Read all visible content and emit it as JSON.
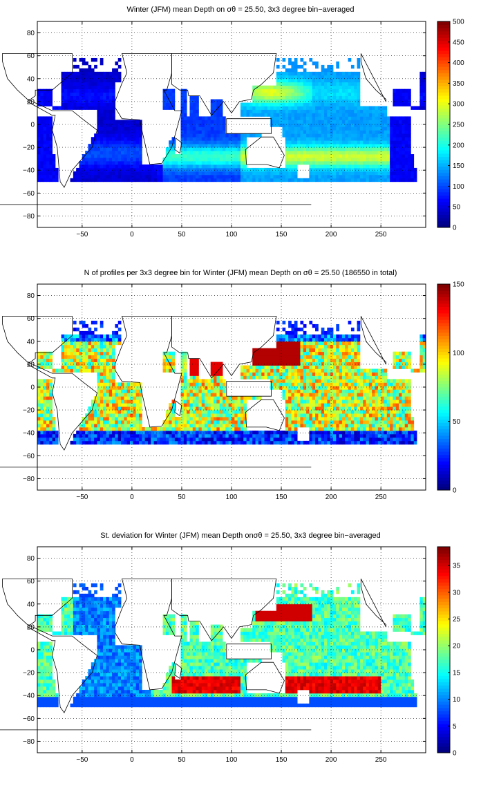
{
  "chart_data": [
    {
      "type": "heatmap",
      "title": "Winter (JFM) mean Depth on σθ = 25.50, 3x3 degree bin−averaged",
      "xlim": [
        -95,
        295
      ],
      "ylim": [
        -90,
        90
      ],
      "x_ticks": [
        "-50",
        "0",
        "50",
        "100",
        "150",
        "200",
        "250"
      ],
      "y_ticks": [
        "80",
        "60",
        "40",
        "20",
        "0",
        "-20",
        "-40",
        "-60",
        "-80"
      ],
      "grid": true,
      "colorbar": {
        "min": 0,
        "max": 500,
        "ticks": [
          "0",
          "50",
          "100",
          "150",
          "200",
          "250",
          "300",
          "350",
          "400",
          "450",
          "500"
        ]
      }
    },
    {
      "type": "heatmap",
      "title": "N of profiles per 3x3 degree bin for Winter (JFM) mean Depth on σθ = 25.50 (186550 in total)",
      "xlim": [
        -95,
        295
      ],
      "ylim": [
        -90,
        90
      ],
      "x_ticks": [
        "-50",
        "0",
        "50",
        "100",
        "150",
        "200",
        "250"
      ],
      "y_ticks": [
        "80",
        "60",
        "40",
        "20",
        "0",
        "-20",
        "-40",
        "-60",
        "-80"
      ],
      "grid": true,
      "colorbar": {
        "min": 0,
        "max": 150,
        "ticks": [
          "0",
          "50",
          "100",
          "150"
        ]
      }
    },
    {
      "type": "heatmap",
      "title": "St. deviation for Winter (JFM) mean Depth onσθ = 25.50, 3x3 degree bin−averaged",
      "xlim": [
        -95,
        295
      ],
      "ylim": [
        -90,
        90
      ],
      "x_ticks": [
        "-50",
        "0",
        "50",
        "100",
        "150",
        "200",
        "250"
      ],
      "y_ticks": [
        "80",
        "60",
        "40",
        "20",
        "0",
        "-20",
        "-40",
        "-60",
        "-80"
      ],
      "grid": true,
      "colorbar": {
        "min": 0,
        "max": 38.5,
        "ticks": [
          "0",
          "5",
          "10",
          "15",
          "20",
          "25",
          "30",
          "35"
        ]
      }
    }
  ]
}
